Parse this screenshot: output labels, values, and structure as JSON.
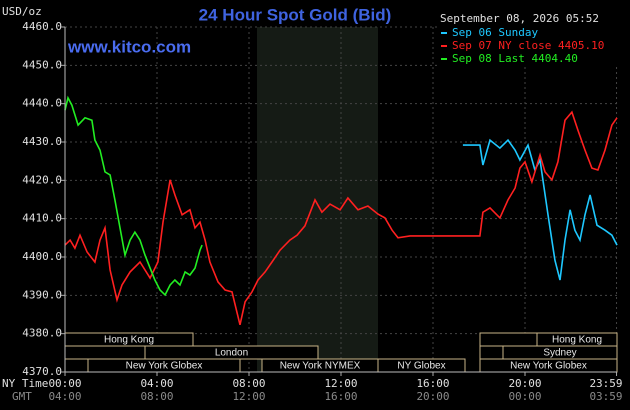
{
  "chart_data": {
    "type": "line",
    "title": "24 Hour Spot Gold (Bid)",
    "watermark": "www.kitco.com",
    "timestamp": "September 08, 2026 05:52",
    "y_label": "USD/oz",
    "x_label": "NY Time",
    "x2_label": "GMT",
    "xlim": [
      0,
      24
    ],
    "xticks": [
      {
        "value": 0,
        "label": "00:00"
      },
      {
        "value": 4,
        "label": "04:00"
      },
      {
        "value": 8,
        "label": "08:00"
      },
      {
        "value": 12,
        "label": "12:00"
      },
      {
        "value": 16,
        "label": "16:00"
      },
      {
        "value": 20,
        "label": "20:00"
      },
      {
        "value": 23.98,
        "label": "23:59"
      }
    ],
    "x2tick_labels": [
      "04:00",
      "08:00",
      "12:00",
      "16:00",
      "20:00",
      "00:00",
      "03:59"
    ],
    "ylim": [
      4370,
      4460
    ],
    "yticks": [
      {
        "value": 4370,
        "label": "4370.0"
      },
      {
        "value": 4380,
        "label": "4380.0"
      },
      {
        "value": 4390,
        "label": "4390.0"
      },
      {
        "value": 4400,
        "label": "4400.0"
      },
      {
        "value": 4410,
        "label": "4410.0"
      },
      {
        "value": 4420,
        "label": "4420.0"
      },
      {
        "value": 4430,
        "label": "4430.0"
      },
      {
        "value": 4440,
        "label": "4440.0"
      },
      {
        "value": 4450,
        "label": "4450.0"
      },
      {
        "value": 4460,
        "label": "4460.0"
      }
    ],
    "grid": true,
    "sessions": [
      "Hong Kong",
      "London",
      "New York Globex",
      "New York NYMEX",
      "NY Globex",
      "Hong Kong",
      "Sydney",
      "New York Globex"
    ],
    "series": [
      {
        "name": "Sep 06 Sunday",
        "color": "#1ec8ff",
        "x": [
          17.3,
          18.04,
          18.17,
          18.48,
          18.91,
          19.26,
          19.57,
          19.78,
          20.13,
          20.43,
          20.65,
          21.0,
          21.3,
          21.52,
          21.74,
          21.96,
          22.17,
          22.39,
          22.61,
          22.83,
          23.13,
          23.48,
          23.78,
          24.0
        ],
        "values": [
          4429.2,
          4429.2,
          4424.0,
          4430.5,
          4428.4,
          4430.5,
          4427.9,
          4425.3,
          4429.2,
          4422.7,
          4425.3,
          4411.0,
          4399.2,
          4394.0,
          4404.4,
          4412.3,
          4407.0,
          4404.4,
          4411.0,
          4416.2,
          4408.3,
          4407.0,
          4405.7,
          4403.1
        ]
      },
      {
        "name": "Sep 07 NY close 4405.10",
        "color": "#ff2020",
        "x": [
          0,
          0.22,
          0.43,
          0.65,
          0.96,
          1.3,
          1.52,
          1.74,
          1.96,
          2.26,
          2.48,
          2.83,
          3.26,
          3.7,
          4.04,
          4.26,
          4.57,
          4.78,
          5.09,
          5.43,
          5.65,
          5.87,
          6.09,
          6.3,
          6.65,
          6.96,
          7.26,
          7.61,
          7.83,
          8.13,
          8.39,
          8.7,
          9.0,
          9.35,
          9.78,
          10.09,
          10.43,
          10.87,
          11.17,
          11.52,
          11.96,
          12.3,
          12.74,
          13.17,
          13.61,
          13.91,
          14.22,
          14.48,
          15.0,
          18.04,
          18.17,
          18.48,
          18.91,
          19.26,
          19.57,
          19.78,
          20.0,
          20.3,
          20.65,
          20.87,
          21.17,
          21.43,
          21.74,
          22.04,
          22.3,
          22.61,
          22.91,
          23.17,
          23.48,
          23.78,
          24.0
        ],
        "values": [
          4403.1,
          4404.4,
          4402.3,
          4405.7,
          4401.3,
          4398.7,
          4404.4,
          4407.6,
          4396.6,
          4388.8,
          4392.7,
          4396.1,
          4398.7,
          4394.5,
          4398.7,
          4409.1,
          4420.1,
          4416.2,
          4411.0,
          4412.3,
          4407.6,
          4409.1,
          4404.4,
          4398.7,
          4393.5,
          4391.4,
          4390.9,
          4382.3,
          4388.3,
          4390.9,
          4394.0,
          4396.1,
          4398.7,
          4401.8,
          4404.4,
          4405.7,
          4408.1,
          4414.9,
          4411.7,
          4413.8,
          4412.3,
          4415.4,
          4412.3,
          4413.3,
          4411.2,
          4410.2,
          4407.0,
          4405.0,
          4405.5,
          4405.5,
          4411.7,
          4412.8,
          4410.2,
          4414.9,
          4418.0,
          4423.2,
          4424.8,
          4419.6,
          4426.6,
          4422.2,
          4420.1,
          4424.8,
          4435.7,
          4437.8,
          4433.1,
          4427.9,
          4423.2,
          4422.7,
          4427.9,
          4434.4,
          4436.3
        ]
      },
      {
        "name": "Sep 08 Last 4404.40",
        "color": "#22ee22",
        "x": [
          0,
          0.13,
          0.3,
          0.57,
          0.87,
          1.17,
          1.3,
          1.52,
          1.74,
          1.96,
          2.17,
          2.39,
          2.61,
          2.83,
          3.04,
          3.26,
          3.48,
          3.7,
          3.91,
          4.13,
          4.35,
          4.57,
          4.78,
          5.0,
          5.22,
          5.43,
          5.65,
          5.87,
          5.96
        ],
        "values": [
          4438.3,
          4441.5,
          4439.6,
          4434.4,
          4436.3,
          4435.7,
          4430.5,
          4427.9,
          4422.2,
          4421.4,
          4414.9,
          4407.6,
          4400.5,
          4404.4,
          4406.5,
          4404.4,
          4400.5,
          4397.1,
          4394.0,
          4391.4,
          4390.1,
          4392.7,
          4394.0,
          4392.7,
          4396.1,
          4395.3,
          4397.1,
          4401.8,
          4403.1
        ]
      }
    ]
  }
}
